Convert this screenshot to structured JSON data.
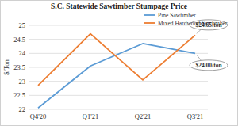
{
  "chart_data": {
    "type": "line",
    "title": "S.C. Statewide Sawtimber Stumpage Price",
    "y_label": "$/Ton",
    "categories": [
      "Q4'20",
      "Q1'21",
      "Q2'21",
      "Q3'21"
    ],
    "series": [
      {
        "name": "Pine Sawtimber",
        "color": "#5b9bd5",
        "values": [
          22.05,
          23.55,
          24.35,
          24.0
        ]
      },
      {
        "name": "Mixed Hardwood Sawtimber",
        "color": "#ed7d31",
        "values": [
          22.85,
          24.7,
          23.05,
          24.65
        ]
      }
    ],
    "annotations": [
      "$24.00/ton",
      "$24.65/ton"
    ],
    "ylim": [
      22,
      25
    ],
    "yticks": [
      22,
      22.5,
      23,
      23.5,
      24,
      24.5,
      25
    ],
    "grid": true,
    "legend": "top-right"
  }
}
